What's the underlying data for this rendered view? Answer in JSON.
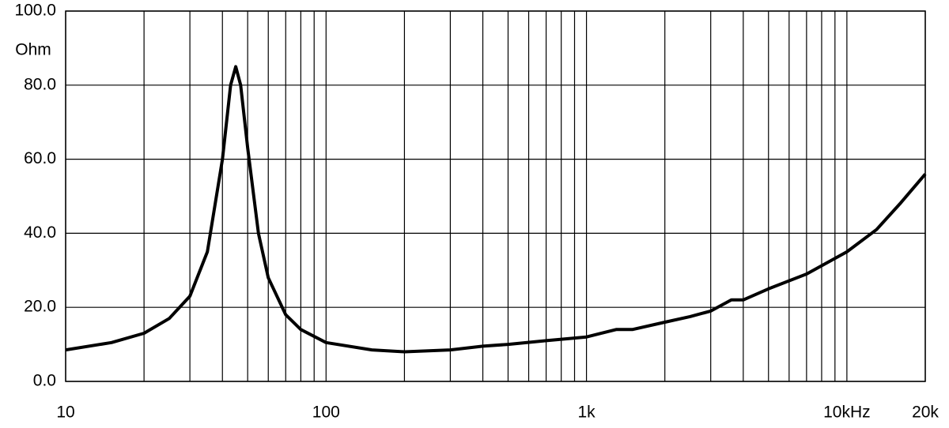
{
  "chart_data": {
    "type": "line",
    "ylabel": "Ohm",
    "xscale": "log",
    "xlim": [
      10,
      20000
    ],
    "ylim": [
      0,
      100
    ],
    "xticks": [
      10,
      100,
      {
        "value": 1000,
        "label": "1k"
      },
      {
        "value": 10000,
        "label": "10kHz"
      },
      {
        "value": 20000,
        "label": "20k"
      }
    ],
    "xgrid": [
      20,
      30,
      40,
      50,
      60,
      70,
      80,
      90,
      200,
      300,
      400,
      500,
      600,
      700,
      800,
      900,
      2000,
      3000,
      4000,
      5000,
      6000,
      7000,
      8000,
      9000
    ],
    "yticks": [
      {
        "value": 0,
        "label": "0.0"
      },
      {
        "value": 20,
        "label": "20.0"
      },
      {
        "value": 40,
        "label": "40.0"
      },
      {
        "value": 60,
        "label": "60.0"
      },
      {
        "value": 80,
        "label": "80.0"
      },
      {
        "value": 100,
        "label": "100.0"
      }
    ],
    "grid": true,
    "series": [
      {
        "color": "#000000",
        "x": [
          10,
          15,
          20,
          25,
          30,
          35,
          40,
          43,
          45,
          47,
          50,
          55,
          60,
          70,
          80,
          100,
          150,
          200,
          300,
          400,
          500,
          700,
          1000,
          1300,
          1500,
          2000,
          2500,
          3000,
          3600,
          4000,
          5000,
          7000,
          10000,
          13000,
          16000,
          20000
        ],
        "values": [
          8.5,
          10.5,
          13,
          17,
          23,
          35,
          60,
          80,
          85,
          80,
          63,
          40,
          28,
          18,
          14,
          10.5,
          8.5,
          8,
          8.5,
          9.5,
          10,
          11,
          12,
          14,
          14,
          16,
          17.5,
          19,
          22,
          22,
          25,
          29,
          35,
          41,
          48,
          56
        ]
      }
    ]
  }
}
